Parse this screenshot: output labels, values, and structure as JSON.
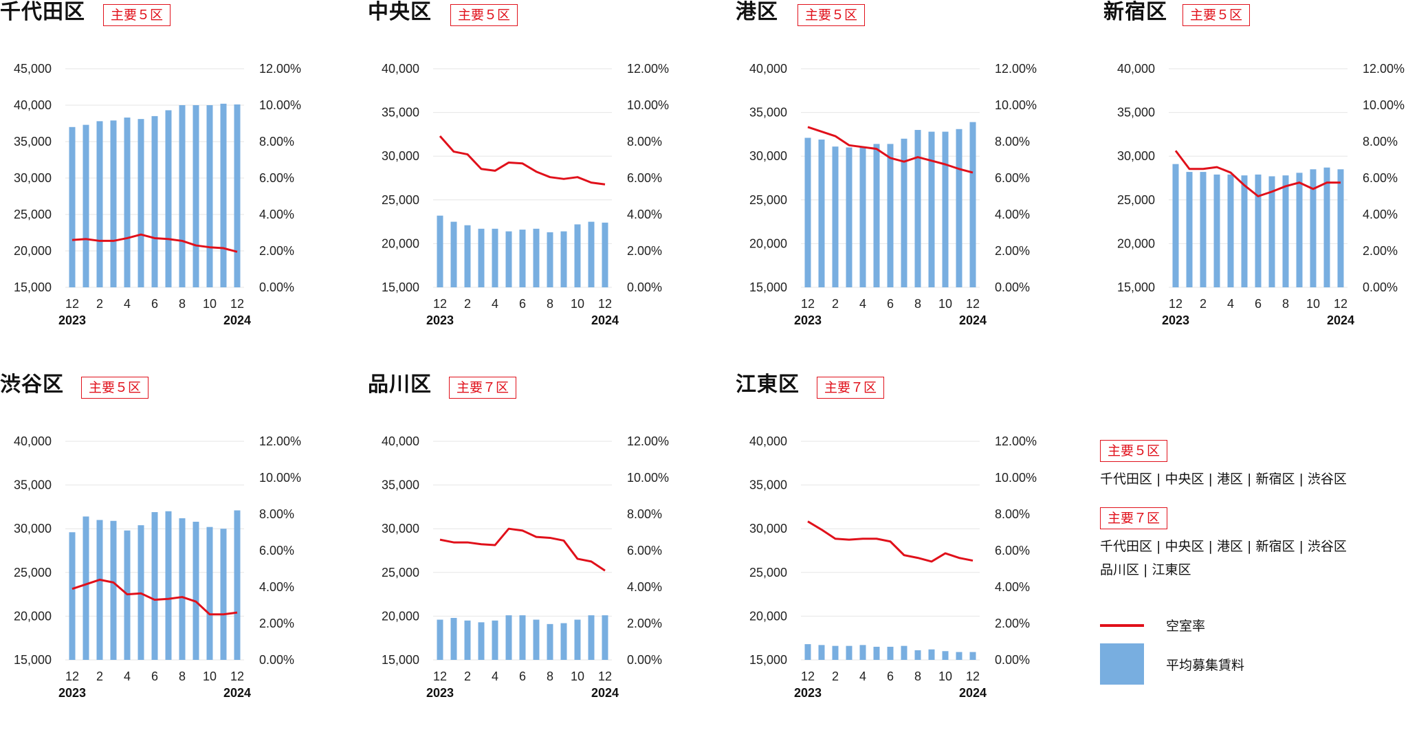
{
  "colors": {
    "bar": "#78aee0",
    "line": "#e0101a",
    "grid": "#e6e6e6",
    "badge": "#e0101a"
  },
  "chart_data": [
    {
      "type": "bar",
      "title": "千代田区",
      "badge": "主要５区",
      "categories": [
        "12",
        "1",
        "2",
        "3",
        "4",
        "5",
        "6",
        "7",
        "8",
        "9",
        "10",
        "11",
        "12"
      ],
      "x_tick_labels": [
        "12",
        "",
        "2",
        "",
        "4",
        "",
        "6",
        "",
        "8",
        "",
        "10",
        "",
        "12"
      ],
      "x_year_labels": [
        "2023",
        "2024"
      ],
      "y_left": {
        "min": 15000,
        "max": 45000,
        "ticks": [
          "15,000",
          "20,000",
          "25,000",
          "30,000",
          "35,000",
          "40,000",
          "45,000"
        ]
      },
      "y_right": {
        "min": 0,
        "max": 12,
        "ticks": [
          "0.00%",
          "2.00%",
          "4.00%",
          "6.00%",
          "8.00%",
          "10.00%",
          "12.00%"
        ]
      },
      "series": [
        {
          "name": "平均募集賃料",
          "type": "bar",
          "axis": "left",
          "values": [
            37000,
            37300,
            37800,
            37900,
            38300,
            38100,
            38500,
            39300,
            40000,
            40000,
            40000,
            40200,
            40100
          ]
        },
        {
          "name": "空室率",
          "type": "line",
          "axis": "right",
          "values": [
            2.6,
            2.65,
            2.55,
            2.55,
            2.7,
            2.9,
            2.7,
            2.65,
            2.55,
            2.3,
            2.2,
            2.15,
            1.95
          ]
        }
      ]
    },
    {
      "type": "bar",
      "title": "中央区",
      "badge": "主要５区",
      "categories": [
        "12",
        "1",
        "2",
        "3",
        "4",
        "5",
        "6",
        "7",
        "8",
        "9",
        "10",
        "11",
        "12"
      ],
      "x_tick_labels": [
        "12",
        "",
        "2",
        "",
        "4",
        "",
        "6",
        "",
        "8",
        "",
        "10",
        "",
        "12"
      ],
      "x_year_labels": [
        "2023",
        "2024"
      ],
      "y_left": {
        "min": 15000,
        "max": 40000,
        "ticks": [
          "15,000",
          "20,000",
          "25,000",
          "30,000",
          "35,000",
          "40,000"
        ]
      },
      "y_right": {
        "min": 0,
        "max": 12,
        "ticks": [
          "0.00%",
          "2.00%",
          "4.00%",
          "6.00%",
          "8.00%",
          "10.00%",
          "12.00%"
        ]
      },
      "series": [
        {
          "name": "平均募集賃料",
          "type": "bar",
          "axis": "left",
          "values": [
            23200,
            22500,
            22100,
            21700,
            21700,
            21400,
            21600,
            21700,
            21300,
            21400,
            22200,
            22500,
            22400
          ]
        },
        {
          "name": "空室率",
          "type": "line",
          "axis": "right",
          "values": [
            8.3,
            7.45,
            7.3,
            6.5,
            6.4,
            6.85,
            6.8,
            6.35,
            6.05,
            5.95,
            6.05,
            5.75,
            5.65
          ]
        }
      ]
    },
    {
      "type": "bar",
      "title": "港区",
      "badge": "主要５区",
      "categories": [
        "12",
        "1",
        "2",
        "3",
        "4",
        "5",
        "6",
        "7",
        "8",
        "9",
        "10",
        "11",
        "12"
      ],
      "x_tick_labels": [
        "12",
        "",
        "2",
        "",
        "4",
        "",
        "6",
        "",
        "8",
        "",
        "10",
        "",
        "12"
      ],
      "x_year_labels": [
        "2023",
        "2024"
      ],
      "y_left": {
        "min": 15000,
        "max": 40000,
        "ticks": [
          "15,000",
          "20,000",
          "25,000",
          "30,000",
          "35,000",
          "40,000"
        ]
      },
      "y_right": {
        "min": 0,
        "max": 12,
        "ticks": [
          "0.00%",
          "2.00%",
          "4.00%",
          "6.00%",
          "8.00%",
          "10.00%",
          "12.00%"
        ]
      },
      "series": [
        {
          "name": "平均募集賃料",
          "type": "bar",
          "axis": "left",
          "values": [
            32100,
            31900,
            31100,
            31000,
            31000,
            31400,
            31400,
            32000,
            33000,
            32800,
            32800,
            33100,
            33900
          ]
        },
        {
          "name": "空室率",
          "type": "line",
          "axis": "right",
          "values": [
            8.8,
            8.55,
            8.3,
            7.8,
            7.7,
            7.6,
            7.1,
            6.9,
            7.15,
            6.95,
            6.75,
            6.5,
            6.3
          ]
        }
      ]
    },
    {
      "type": "bar",
      "title": "新宿区",
      "badge": "主要５区",
      "categories": [
        "12",
        "1",
        "2",
        "3",
        "4",
        "5",
        "6",
        "7",
        "8",
        "9",
        "10",
        "11",
        "12"
      ],
      "x_tick_labels": [
        "12",
        "",
        "2",
        "",
        "4",
        "",
        "6",
        "",
        "8",
        "",
        "10",
        "",
        "12"
      ],
      "x_year_labels": [
        "2023",
        "2024"
      ],
      "y_left": {
        "min": 15000,
        "max": 40000,
        "ticks": [
          "15,000",
          "20,000",
          "25,000",
          "30,000",
          "35,000",
          "40,000"
        ]
      },
      "y_right": {
        "min": 0,
        "max": 12,
        "ticks": [
          "0.00%",
          "2.00%",
          "4.00%",
          "6.00%",
          "8.00%",
          "10.00%",
          "12.00%"
        ]
      },
      "series": [
        {
          "name": "平均募集賃料",
          "type": "bar",
          "axis": "left",
          "values": [
            29100,
            28200,
            28200,
            27900,
            27900,
            27800,
            27900,
            27700,
            27800,
            28100,
            28500,
            28700,
            28500
          ]
        },
        {
          "name": "空室率",
          "type": "line",
          "axis": "right",
          "values": [
            7.5,
            6.5,
            6.5,
            6.6,
            6.3,
            5.6,
            5.0,
            5.25,
            5.55,
            5.75,
            5.4,
            5.75,
            5.75
          ]
        }
      ]
    },
    {
      "type": "bar",
      "title": "渋谷区",
      "badge": "主要５区",
      "categories": [
        "12",
        "1",
        "2",
        "3",
        "4",
        "5",
        "6",
        "7",
        "8",
        "9",
        "10",
        "11",
        "12"
      ],
      "x_tick_labels": [
        "12",
        "",
        "2",
        "",
        "4",
        "",
        "6",
        "",
        "8",
        "",
        "10",
        "",
        "12"
      ],
      "x_year_labels": [
        "2023",
        "2024"
      ],
      "y_left": {
        "min": 15000,
        "max": 40000,
        "ticks": [
          "15,000",
          "20,000",
          "25,000",
          "30,000",
          "35,000",
          "40,000"
        ]
      },
      "y_right": {
        "min": 0,
        "max": 12,
        "ticks": [
          "0.00%",
          "2.00%",
          "4.00%",
          "6.00%",
          "8.00%",
          "10.00%",
          "12.00%"
        ]
      },
      "series": [
        {
          "name": "平均募集賃料",
          "type": "bar",
          "axis": "left",
          "values": [
            29600,
            31400,
            31000,
            30900,
            29800,
            30400,
            31900,
            32000,
            31200,
            30800,
            30200,
            30000,
            32100
          ]
        },
        {
          "name": "空室率",
          "type": "line",
          "axis": "right",
          "values": [
            3.9,
            4.15,
            4.4,
            4.25,
            3.6,
            3.65,
            3.3,
            3.35,
            3.45,
            3.2,
            2.5,
            2.5,
            2.6
          ]
        }
      ]
    },
    {
      "type": "bar",
      "title": "品川区",
      "badge": "主要７区",
      "categories": [
        "12",
        "1",
        "2",
        "3",
        "4",
        "5",
        "6",
        "7",
        "8",
        "9",
        "10",
        "11",
        "12"
      ],
      "x_tick_labels": [
        "12",
        "",
        "2",
        "",
        "4",
        "",
        "6",
        "",
        "8",
        "",
        "10",
        "",
        "12"
      ],
      "x_year_labels": [
        "2023",
        "2024"
      ],
      "y_left": {
        "min": 15000,
        "max": 40000,
        "ticks": [
          "15,000",
          "20,000",
          "25,000",
          "30,000",
          "35,000",
          "40,000"
        ]
      },
      "y_right": {
        "min": 0,
        "max": 12,
        "ticks": [
          "0.00%",
          "2.00%",
          "4.00%",
          "6.00%",
          "8.00%",
          "10.00%",
          "12.00%"
        ]
      },
      "series": [
        {
          "name": "平均募集賃料",
          "type": "bar",
          "axis": "left",
          "values": [
            19600,
            19800,
            19500,
            19300,
            19500,
            20100,
            20100,
            19600,
            19100,
            19200,
            19600,
            20100,
            20100
          ]
        },
        {
          "name": "空室率",
          "type": "line",
          "axis": "right",
          "values": [
            6.6,
            6.45,
            6.45,
            6.35,
            6.3,
            7.2,
            7.1,
            6.75,
            6.7,
            6.55,
            5.55,
            5.4,
            4.9
          ]
        }
      ]
    },
    {
      "type": "bar",
      "title": "江東区",
      "badge": "主要７区",
      "categories": [
        "12",
        "1",
        "2",
        "3",
        "4",
        "5",
        "6",
        "7",
        "8",
        "9",
        "10",
        "11",
        "12"
      ],
      "x_tick_labels": [
        "12",
        "",
        "2",
        "",
        "4",
        "",
        "6",
        "",
        "8",
        "",
        "10",
        "",
        "12"
      ],
      "x_year_labels": [
        "2023",
        "2024"
      ],
      "y_left": {
        "min": 15000,
        "max": 40000,
        "ticks": [
          "15,000",
          "20,000",
          "25,000",
          "30,000",
          "35,000",
          "40,000"
        ]
      },
      "y_right": {
        "min": 0,
        "max": 12,
        "ticks": [
          "0.00%",
          "2.00%",
          "4.00%",
          "6.00%",
          "8.00%",
          "10.00%",
          "12.00%"
        ]
      },
      "series": [
        {
          "name": "平均募集賃料",
          "type": "bar",
          "axis": "left",
          "values": [
            16800,
            16700,
            16600,
            16600,
            16700,
            16500,
            16500,
            16600,
            16100,
            16200,
            16000,
            15900,
            15900
          ]
        },
        {
          "name": "空室率",
          "type": "line",
          "axis": "right",
          "values": [
            7.6,
            7.15,
            6.65,
            6.6,
            6.65,
            6.65,
            6.5,
            5.75,
            5.6,
            5.4,
            5.85,
            5.6,
            5.45
          ]
        }
      ]
    }
  ],
  "legend": {
    "group5_badge": "主要５区",
    "group5_text": "千代田区 | 中央区 | 港区 | 新宿区 | 渋谷区",
    "group7_badge": "主要７区",
    "group7_text_line1": "千代田区 | 中央区 | 港区 | 新宿区 | 渋谷区",
    "group7_text_line2": "品川区 | 江東区",
    "line_label": "空室率",
    "bar_label": "平均募集賃料"
  }
}
